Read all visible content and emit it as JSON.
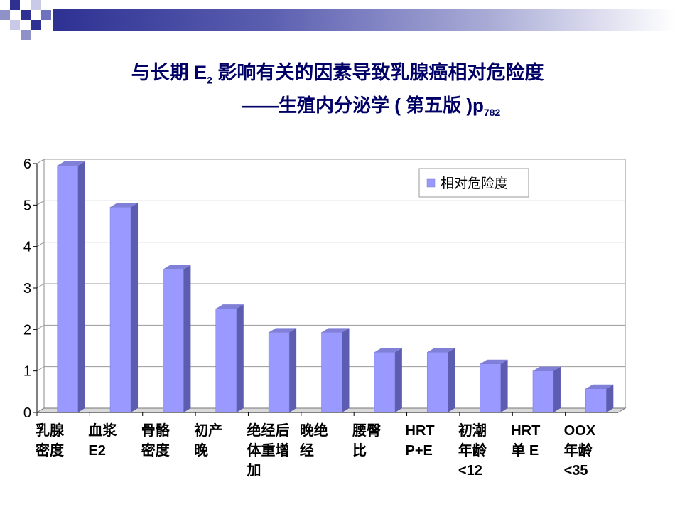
{
  "title": {
    "line1_pre": "与长期 E",
    "line1_sub": "2",
    "line1_post": " 影响有关的因素导致乳腺癌相对危险度",
    "line2_pre": "——生殖内分泌学 ( 第五版 )p",
    "line2_sub": "782"
  },
  "colors": {
    "bar_front": "#9999ff",
    "bar_side": "#5c5cb0",
    "bar_top": "#8080d8",
    "title": "#000066",
    "band_dark": "#2e3192"
  },
  "chart_data": {
    "type": "bar",
    "categories": [
      "乳腺密度",
      "血浆E2",
      "骨骼密度",
      "初产晚",
      "绝经后体重增加",
      "晚绝经",
      "腰臀比",
      "HRT P+E",
      "初潮年龄<12",
      "HRT 单 E",
      "OOX年龄<35"
    ],
    "category_lines": [
      [
        "乳腺",
        "密度"
      ],
      [
        "血浆",
        "E2"
      ],
      [
        "骨骼",
        "密度"
      ],
      [
        "初产",
        "晚"
      ],
      [
        "绝经后",
        "体重增",
        "加"
      ],
      [
        "晚绝",
        "经"
      ],
      [
        "腰臀",
        "比"
      ],
      [
        "HRT",
        "P+E"
      ],
      [
        "初潮",
        "年龄",
        "<12"
      ],
      [
        "HRT",
        "单 E"
      ],
      [
        "OOX",
        "年龄",
        "<35"
      ]
    ],
    "series": [
      {
        "name": "相对危险度",
        "values": [
          5.95,
          4.95,
          3.45,
          2.5,
          1.93,
          1.93,
          1.45,
          1.45,
          1.17,
          1.0,
          0.57
        ]
      }
    ],
    "ylim": [
      0,
      6
    ],
    "yticks": [
      "0",
      "1",
      "2",
      "3",
      "4",
      "5",
      "6"
    ],
    "grid": true,
    "legend_position": "top-right",
    "style": "3d-bar"
  }
}
